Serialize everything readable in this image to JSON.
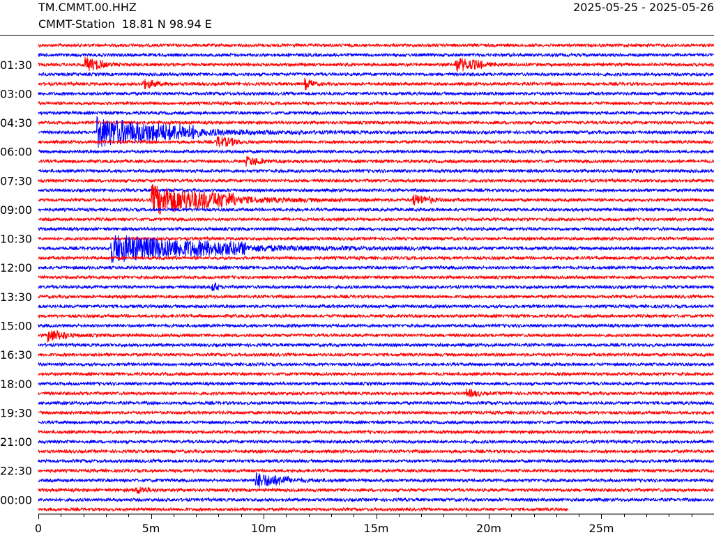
{
  "header": {
    "station_id": "TM.CMMT.00.HHZ",
    "station_desc": "CMMT-Station  18.81 N 98.94 E",
    "date_range": "2025-05-25 - 2025-05-26"
  },
  "chart_data": {
    "type": "line",
    "title": "TM.CMMT.00.HHZ",
    "xlabel": "",
    "ylabel": "",
    "xlim": [
      0,
      30
    ],
    "x_unit": "minutes",
    "x_ticks": [
      {
        "value": 0,
        "label": "0"
      },
      {
        "value": 5,
        "label": "5m"
      },
      {
        "value": 10,
        "label": "10m"
      },
      {
        "value": 15,
        "label": "15m"
      },
      {
        "value": 20,
        "label": "20m"
      },
      {
        "value": 25,
        "label": "25m"
      }
    ],
    "x_minor_step": 1,
    "row_minutes": 30,
    "row_count": 49,
    "last_row_end_min": 23.5,
    "y_tick_labels": [
      {
        "row": 2,
        "label": "01:30"
      },
      {
        "row": 5,
        "label": "03:00"
      },
      {
        "row": 8,
        "label": "04:30"
      },
      {
        "row": 11,
        "label": "06:00"
      },
      {
        "row": 14,
        "label": "07:30"
      },
      {
        "row": 17,
        "label": "09:00"
      },
      {
        "row": 20,
        "label": "10:30"
      },
      {
        "row": 23,
        "label": "12:00"
      },
      {
        "row": 26,
        "label": "13:30"
      },
      {
        "row": 29,
        "label": "15:00"
      },
      {
        "row": 32,
        "label": "16:30"
      },
      {
        "row": 35,
        "label": "18:00"
      },
      {
        "row": 38,
        "label": "19:30"
      },
      {
        "row": 41,
        "label": "21:00"
      },
      {
        "row": 44,
        "label": "22:30"
      },
      {
        "row": 47,
        "label": "00:00"
      }
    ],
    "trace_colors": [
      "#ff0000",
      "#0000ff"
    ],
    "events": [
      {
        "row": 2,
        "minute": 2.0,
        "amp": 1.6,
        "dur": 0.6
      },
      {
        "row": 2,
        "minute": 18.5,
        "amp": 1.6,
        "dur": 0.8
      },
      {
        "row": 4,
        "minute": 4.6,
        "amp": 1.0,
        "dur": 0.5
      },
      {
        "row": 4,
        "minute": 11.8,
        "amp": 1.2,
        "dur": 0.3
      },
      {
        "row": 9,
        "minute": 2.6,
        "amp": 3.2,
        "dur": 3.0
      },
      {
        "row": 10,
        "minute": 7.9,
        "amp": 1.2,
        "dur": 0.6
      },
      {
        "row": 12,
        "minute": 9.2,
        "amp": 1.0,
        "dur": 0.5
      },
      {
        "row": 16,
        "minute": 5.0,
        "amp": 3.2,
        "dur": 2.5
      },
      {
        "row": 16,
        "minute": 16.6,
        "amp": 1.1,
        "dur": 0.6
      },
      {
        "row": 21,
        "minute": 3.2,
        "amp": 3.0,
        "dur": 4.0
      },
      {
        "row": 25,
        "minute": 7.7,
        "amp": 1.1,
        "dur": 0.2
      },
      {
        "row": 30,
        "minute": 0.4,
        "amp": 1.3,
        "dur": 0.6
      },
      {
        "row": 36,
        "minute": 19.0,
        "amp": 0.8,
        "dur": 0.4
      },
      {
        "row": 45,
        "minute": 9.6,
        "amp": 1.6,
        "dur": 1.0
      },
      {
        "row": 46,
        "minute": 4.3,
        "amp": 0.8,
        "dur": 0.4
      }
    ]
  }
}
